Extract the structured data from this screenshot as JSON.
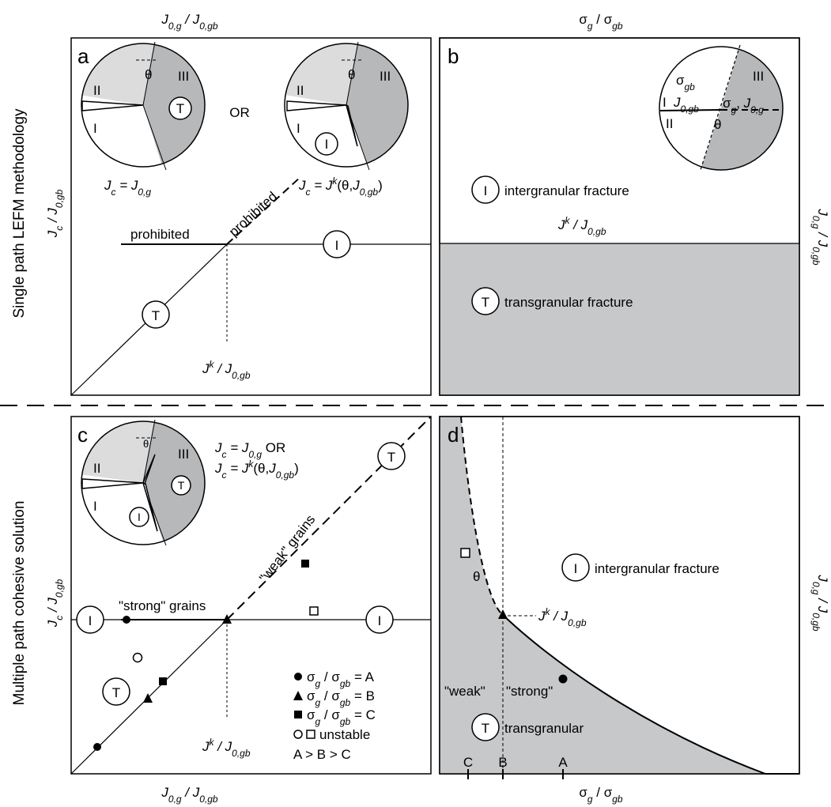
{
  "panels": {
    "a": {
      "letter": "a"
    },
    "b": {
      "letter": "b"
    },
    "c": {
      "letter": "c"
    },
    "d": {
      "letter": "d"
    }
  },
  "rows": {
    "top": "Single path LEFM methodology",
    "bottom": "Multiple path cohesive solution"
  },
  "roman": {
    "one": "I",
    "two": "II",
    "three": "III"
  },
  "markers": {
    "T": "T",
    "I": "I"
  },
  "labels": {
    "or": "OR",
    "prohibited": "prohibited",
    "intergranular": "intergranular fracture",
    "transgranular_fracture": "transgranular fracture",
    "transgranular": "transgranular",
    "strong_grains": "\"strong\" grains",
    "weak_grains": "\"weak\" grains",
    "weak": "\"weak\"",
    "strong": "\"strong\"",
    "theta": "θ",
    "unstable": "unstable",
    "order": "A > B > C",
    "legend_a": "σg / σgb = A",
    "legend_b": "σg / σgb = B",
    "legend_c": "σg / σgb = C"
  },
  "ticks": {
    "A": "A",
    "B": "B",
    "C": "C"
  },
  "colors": {
    "shade": "#c6c8ca",
    "light": "#dcdcdc",
    "dark": "#b7b8ba"
  }
}
